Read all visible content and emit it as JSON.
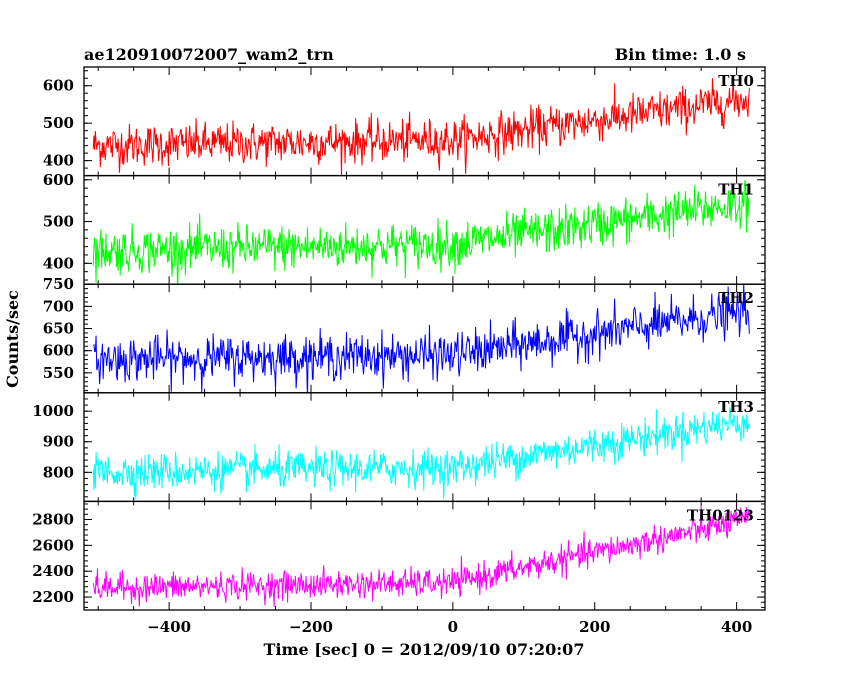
{
  "header": {
    "title": "ae120910072007_wam2_trn",
    "bin_time": "Bin time: 1.0 s"
  },
  "chart_data": {
    "type": "line",
    "title": "ae120910072007_wam2_trn",
    "subtitle": "Bin time: 1.0 s",
    "xlabel": "Time [sec] 0 = 2012/09/10 07:20:07",
    "ylabel": "Counts/sec",
    "xlim": [
      -520,
      440
    ],
    "x_ticks": [
      -400,
      -200,
      0,
      200,
      400
    ],
    "x_tick_labels": [
      "−400",
      "−200",
      "0",
      "200",
      "400"
    ],
    "bin_time_s": 1.0,
    "x_start": -507,
    "x_end": 418,
    "grid": false,
    "series": [
      {
        "name": "TH0",
        "color": "#ff0000",
        "ylim": [
          360,
          650
        ],
        "y_ticks": [
          400,
          500,
          600
        ],
        "trend": [
          [
            -507,
            440
          ],
          [
            0,
            455
          ],
          [
            418,
            565
          ]
        ],
        "noise_sd": 28
      },
      {
        "name": "TH1",
        "color": "#00ff00",
        "ylim": [
          350,
          610
        ],
        "y_ticks": [
          400,
          500,
          600
        ],
        "trend": [
          [
            -507,
            430
          ],
          [
            0,
            445
          ],
          [
            418,
            545
          ]
        ],
        "noise_sd": 27
      },
      {
        "name": "TH2",
        "color": "#0000ff",
        "ylim": [
          505,
          750
        ],
        "y_ticks": [
          550,
          600,
          650,
          700,
          750
        ],
        "trend": [
          [
            -507,
            580
          ],
          [
            0,
            590
          ],
          [
            418,
            690
          ]
        ],
        "noise_sd": 25
      },
      {
        "name": "TH3",
        "color": "#00ffff",
        "ylim": [
          705,
          1060
        ],
        "y_ticks": [
          800,
          900,
          1000
        ],
        "trend": [
          [
            -507,
            800
          ],
          [
            0,
            815
          ],
          [
            418,
            970
          ]
        ],
        "noise_sd": 30
      },
      {
        "name": "TH0123",
        "color": "#ff00ff",
        "ylim": [
          2100,
          2940
        ],
        "y_ticks": [
          2200,
          2400,
          2600,
          2800
        ],
        "trend": [
          [
            -507,
            2270
          ],
          [
            0,
            2310
          ],
          [
            418,
            2800
          ]
        ],
        "noise_sd": 55
      }
    ]
  }
}
